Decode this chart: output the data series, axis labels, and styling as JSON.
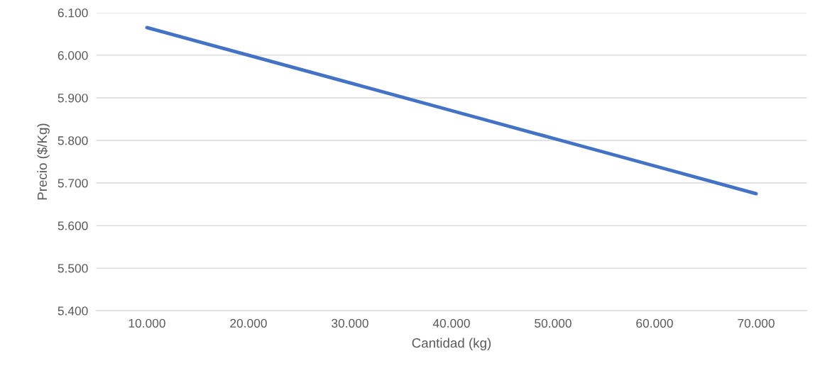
{
  "chart_data": {
    "type": "line",
    "xlabel": "Cantidad (kg)",
    "ylabel": "Precio ($/Kg)",
    "categories": [
      "10.000",
      "20.000",
      "30.000",
      "40.000",
      "50.000",
      "60.000",
      "70.000"
    ],
    "series": [
      {
        "color": "#4472c4",
        "values": [
          6065,
          6000,
          5935,
          5870,
          5805,
          5740,
          5675
        ]
      }
    ],
    "ylim": [
      5400,
      6100
    ],
    "yticks": [
      {
        "value": 5400,
        "label": "5.400"
      },
      {
        "value": 5500,
        "label": "5.500"
      },
      {
        "value": 5600,
        "label": "5.600"
      },
      {
        "value": 5700,
        "label": "5.700"
      },
      {
        "value": 5800,
        "label": "5.800"
      },
      {
        "value": 5900,
        "label": "5.900"
      },
      {
        "value": 6000,
        "label": "6.000"
      },
      {
        "value": 6100,
        "label": "6.100"
      }
    ],
    "grid": "y",
    "marker": "none",
    "line_style": "solid"
  }
}
